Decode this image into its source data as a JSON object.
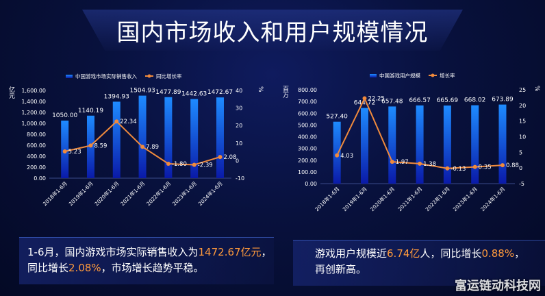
{
  "page": {
    "title": "国内市场收入和用户规模情况",
    "watermark": "富运链动科技网"
  },
  "captions": {
    "left": {
      "t1": "1-6月，国内游戏市场实际销售收入为",
      "h1": "1472.67亿元",
      "t2": "，",
      "t3": "同比增长",
      "h2": "2.08%",
      "t4": "，市场增长趋势平稳。"
    },
    "right": {
      "t1": "游戏用户规模近",
      "h1": "6.74亿",
      "t2": "人，同比增长",
      "h2": "0.88%",
      "t3": "，",
      "t4": "再创新高。"
    }
  },
  "colors": {
    "bar_top": "#1e8bff",
    "bar_bottom": "#0a1aa8",
    "line": "#f08a3c",
    "axis_text": "#ffffff"
  },
  "chart_data": [
    {
      "type": "bar",
      "legend": [
        "中国游戏市场实际销售收入",
        "同比增长率"
      ],
      "ylabel": "亿元",
      "y2label": "%",
      "categories": [
        "2018年1-6月",
        "2019年1-6月",
        "2020年1-6月",
        "2021年1-6月",
        "2022年1-6月",
        "2023年1-6月",
        "2024年1-6月"
      ],
      "series": [
        {
          "name": "中国游戏市场实际销售收入",
          "kind": "bar",
          "values": [
            1050.0,
            1140.19,
            1394.93,
            1504.93,
            1477.89,
            1442.63,
            1472.67
          ],
          "labels": [
            "1050.00",
            "1140.19",
            "1394.93",
            "1504.93",
            "1477.89",
            "1442.63",
            "1472.67"
          ]
        },
        {
          "name": "同比增长率",
          "kind": "line",
          "values": [
            5.23,
            8.59,
            22.34,
            7.89,
            -1.8,
            -2.39,
            2.08
          ],
          "labels": [
            "5.23",
            "8.59",
            "22.34",
            "7.89",
            "-1.80",
            "-2.39",
            "2.08"
          ]
        }
      ],
      "ylim": [
        0,
        1600
      ],
      "yticks": [
        "0.00",
        "200.00",
        "400.00",
        "600.00",
        "800.00",
        "1,000.00",
        "1,200.00",
        "1,400.00",
        "1,600.00"
      ],
      "y2lim": [
        -10,
        40
      ],
      "y2ticks": [
        "-10",
        "0",
        "10",
        "20",
        "30",
        "40"
      ]
    },
    {
      "type": "bar",
      "legend": [
        "中国游戏用户规模",
        "增长率"
      ],
      "ylabel": "百万",
      "y2label": "%",
      "categories": [
        "2018年1-6月",
        "2019年1-6月",
        "2020年1-6月",
        "2021年1-6月",
        "2022年1-6月",
        "2023年1-6月",
        "2024年1-6月"
      ],
      "series": [
        {
          "name": "中国游戏用户规模",
          "kind": "bar",
          "values": [
            527.4,
            644.72,
            657.48,
            666.57,
            665.69,
            668.02,
            673.89
          ],
          "labels": [
            "527.40",
            "644.72",
            "657.48",
            "666.57",
            "665.69",
            "668.02",
            "673.89"
          ]
        },
        {
          "name": "增长率",
          "kind": "line",
          "values": [
            4.03,
            22.25,
            1.97,
            1.38,
            -0.13,
            0.35,
            0.88
          ],
          "labels": [
            "4.03",
            "22.25",
            "1.97",
            "1.38",
            "-0.13",
            "0.35",
            "0.88"
          ]
        }
      ],
      "ylim": [
        0,
        800
      ],
      "yticks": [
        "0.00",
        "100.00",
        "200.00",
        "300.00",
        "400.00",
        "500.00",
        "600.00",
        "700.00",
        "800.00"
      ],
      "y2lim": [
        -5,
        25
      ],
      "y2ticks": [
        "-5",
        "0",
        "5",
        "10",
        "15",
        "20",
        "25"
      ]
    }
  ]
}
